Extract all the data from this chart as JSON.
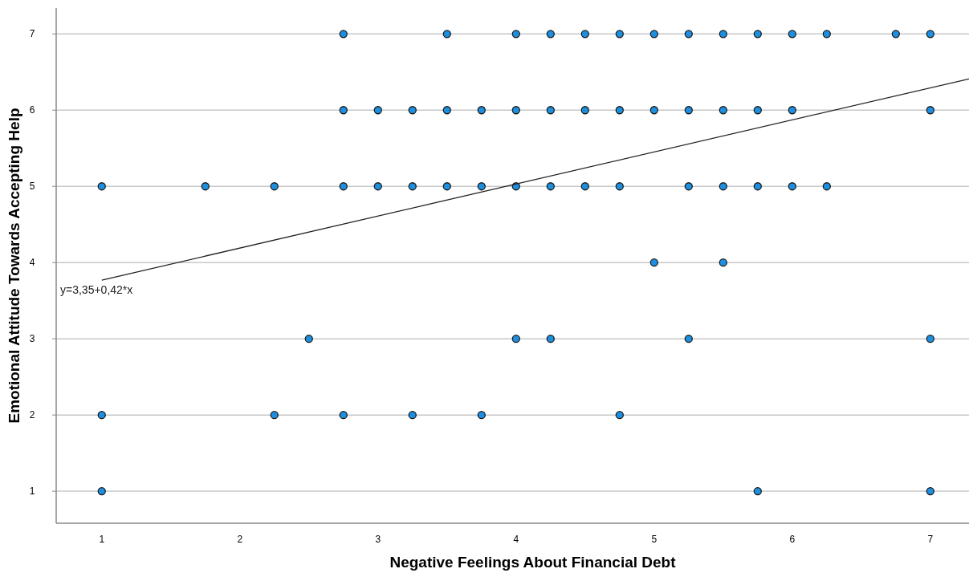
{
  "chart_data": {
    "type": "scatter",
    "xlabel": "Negative Feelings About Financial Debt",
    "ylabel": "Emotional Attitude Towards Accepting Help",
    "xlim": [
      0.67,
      7.28
    ],
    "ylim": [
      0.58,
      7.34
    ],
    "xticks": [
      1,
      2,
      3,
      4,
      5,
      6,
      7
    ],
    "yticks": [
      1,
      2,
      3,
      4,
      5,
      6,
      7
    ],
    "grid": "y",
    "annotations": [
      "y=3,35+0,42*x"
    ],
    "series": [
      {
        "marker": "circle",
        "color": "#1e8fe0",
        "x": [
          2.75,
          3.5,
          4,
          4.25,
          4.5,
          4.75,
          5,
          5.25,
          5.5,
          5.75,
          6,
          6.25,
          6.75,
          7,
          2.75,
          3,
          3.25,
          3.5,
          3.75,
          4,
          4.25,
          4.5,
          4.75,
          5,
          5.25,
          5.5,
          5.75,
          6,
          7,
          1,
          1.75,
          2.25,
          2.75,
          3,
          3.25,
          3.5,
          3.75,
          4,
          4.25,
          4.5,
          4.75,
          5.25,
          5.5,
          5.75,
          6,
          6.25,
          5,
          5.5,
          2.5,
          4,
          4.25,
          5.25,
          7,
          1,
          2.25,
          2.75,
          3.25,
          3.75,
          4.75,
          1,
          5.75,
          7
        ],
        "values": [
          7,
          7,
          7,
          7,
          7,
          7,
          7,
          7,
          7,
          7,
          7,
          7,
          7,
          7,
          6,
          6,
          6,
          6,
          6,
          6,
          6,
          6,
          6,
          6,
          6,
          6,
          6,
          6,
          6,
          5,
          5,
          5,
          5,
          5,
          5,
          5,
          5,
          5,
          5,
          5,
          5,
          5,
          5,
          5,
          5,
          5,
          4,
          4,
          3,
          3,
          3,
          3,
          3,
          2,
          2,
          2,
          2,
          2,
          2,
          1,
          1,
          1
        ]
      },
      {
        "type": "line",
        "color": "#222222",
        "line_style": "solid",
        "x": [
          1,
          7.28
        ],
        "values": [
          3.77,
          6.41
        ]
      }
    ]
  }
}
